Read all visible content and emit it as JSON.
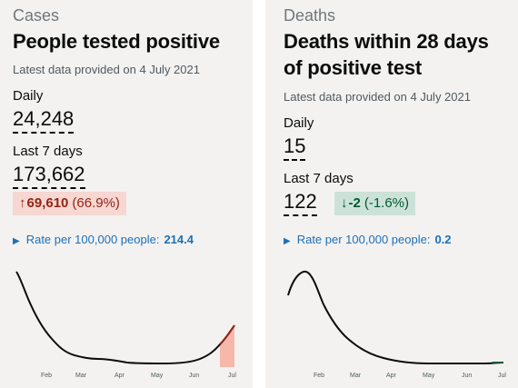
{
  "cards": {
    "cases": {
      "category": "Cases",
      "title_lines": [
        "People tested positive"
      ],
      "latest": "Latest data provided on 4 July 2021",
      "daily": {
        "label": "Daily",
        "value": "24,248"
      },
      "last7": {
        "label": "Last 7 days",
        "value": "173,662"
      },
      "change": {
        "arrow": "↑",
        "value": "69,610",
        "percent": "(66.9%)",
        "direction": "up",
        "color": "#942514",
        "bg": "#f6d7d2"
      },
      "rate": {
        "label": "Rate per 100,000 people:",
        "value": "214.4"
      },
      "months": [
        "Feb",
        "Mar",
        "Apr",
        "May",
        "Jun",
        "Jul"
      ]
    },
    "deaths": {
      "category": "Deaths",
      "title_lines": [
        "Deaths within 28 days",
        "of positive test"
      ],
      "latest": "Latest data provided on 4 July 2021",
      "daily": {
        "label": "Daily",
        "value": "15"
      },
      "last7": {
        "label": "Last 7 days",
        "value": "122"
      },
      "change": {
        "arrow": "↓",
        "value": "-2",
        "percent": "(-1.6%)",
        "direction": "down",
        "color": "#005a30",
        "bg": "#cce2d8"
      },
      "rate": {
        "label": "Rate per 100,000 people:",
        "value": "0.2"
      },
      "months": [
        "Feb",
        "Mar",
        "Apr",
        "May",
        "Jun",
        "Jul"
      ]
    }
  },
  "colors": {
    "link": "#1d70b8",
    "line": "#0b0c0c",
    "highlight_fill": "#f6b8ab",
    "highlight_line": "#942514"
  }
}
